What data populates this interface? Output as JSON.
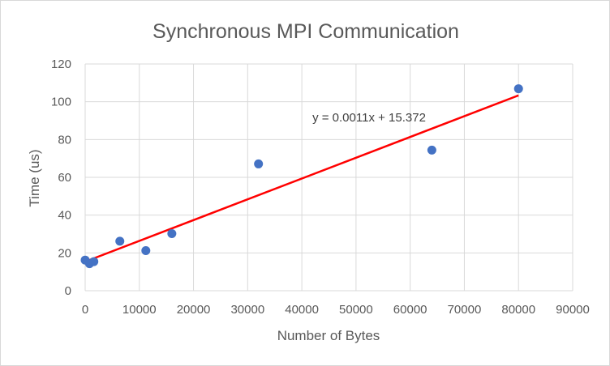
{
  "chart_data": {
    "type": "scatter",
    "title": "Synchronous MPI Communication",
    "xlabel": "Number of Bytes",
    "ylabel": "Time (us)",
    "xlim": [
      0,
      90000
    ],
    "ylim": [
      0,
      120
    ],
    "xticks": [
      "0",
      "10000",
      "20000",
      "30000",
      "40000",
      "50000",
      "60000",
      "70000",
      "80000",
      "90000"
    ],
    "yticks": [
      "0",
      "20",
      "40",
      "60",
      "80",
      "100",
      "120"
    ],
    "grid": true,
    "points": [
      {
        "x": 0,
        "y": 16.2
      },
      {
        "x": 800,
        "y": 14.3
      },
      {
        "x": 1600,
        "y": 15.4
      },
      {
        "x": 6400,
        "y": 26.2
      },
      {
        "x": 11200,
        "y": 21.2
      },
      {
        "x": 16000,
        "y": 30.2
      },
      {
        "x": 32000,
        "y": 67.1
      },
      {
        "x": 64000,
        "y": 74.4
      },
      {
        "x": 80000,
        "y": 106.9
      }
    ],
    "trendline": {
      "type": "linear",
      "slope": 0.0011,
      "intercept": 15.372,
      "x_range": [
        0,
        80000
      ],
      "label": "y = 0.0011x + 15.372",
      "color": "#ff0000"
    },
    "marker_color": "#4472c4",
    "grid_color": "#d9d9d9"
  }
}
